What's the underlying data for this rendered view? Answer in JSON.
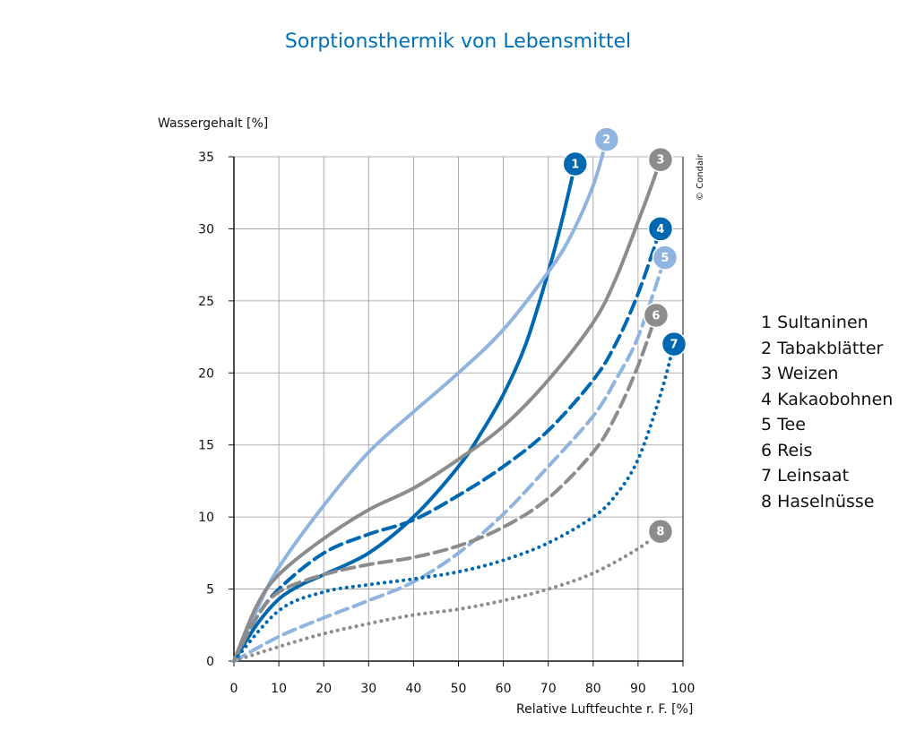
{
  "chart_data": {
    "type": "line",
    "title": "Sorptionsthermik von Lebensmittel",
    "ylabel": "Wassergehalt [%]",
    "xlabel": "Relative Luftfeuchte r. F. [%]",
    "xlim": [
      0,
      100
    ],
    "ylim": [
      0,
      35
    ],
    "xticks": [
      0,
      10,
      20,
      30,
      40,
      50,
      60,
      70,
      80,
      90,
      100
    ],
    "yticks": [
      0,
      5,
      10,
      15,
      20,
      25,
      30,
      35
    ],
    "grid": true,
    "legend_position": "right",
    "copyright": "© Condair",
    "series": [
      {
        "name": "Sultaninen",
        "label": "1",
        "color": "#0068b0",
        "style": "solid",
        "x": [
          0,
          5,
          10,
          15,
          20,
          30,
          40,
          50,
          55,
          60,
          65,
          70,
          73,
          76
        ],
        "y": [
          0,
          2.5,
          4.3,
          5.3,
          6.0,
          7.5,
          10.0,
          13.5,
          15.8,
          18.5,
          22.0,
          27.0,
          30.5,
          34.5
        ]
      },
      {
        "name": "Tabakblätter",
        "label": "2",
        "color": "#8fb4df",
        "style": "solid",
        "x": [
          0,
          5,
          10,
          20,
          30,
          40,
          50,
          60,
          70,
          75,
          80,
          83
        ],
        "y": [
          0,
          3.5,
          6.5,
          10.8,
          14.5,
          17.3,
          20.0,
          23.0,
          27.0,
          29.5,
          33.0,
          36.2
        ]
      },
      {
        "name": "Weizen",
        "label": "3",
        "color": "#8c8c8c",
        "style": "solid",
        "x": [
          0,
          5,
          10,
          20,
          30,
          40,
          50,
          60,
          70,
          80,
          85,
          90,
          93,
          95
        ],
        "y": [
          0,
          3.8,
          6.0,
          8.5,
          10.5,
          12.0,
          14.0,
          16.3,
          19.5,
          23.5,
          26.5,
          30.5,
          33.0,
          34.8
        ]
      },
      {
        "name": "Kakaobohnen",
        "label": "4",
        "color": "#0068b0",
        "style": "dashed",
        "x": [
          0,
          5,
          10,
          20,
          30,
          40,
          50,
          60,
          70,
          80,
          85,
          90,
          95
        ],
        "y": [
          0,
          3.0,
          5.0,
          7.5,
          8.8,
          9.8,
          11.5,
          13.5,
          16.0,
          19.5,
          22.0,
          25.5,
          30.0
        ]
      },
      {
        "name": "Tee",
        "label": "5",
        "color": "#8fb4df",
        "style": "dashed",
        "x": [
          0,
          10,
          20,
          30,
          40,
          50,
          60,
          70,
          80,
          85,
          90,
          96
        ],
        "y": [
          0,
          1.7,
          3.0,
          4.2,
          5.5,
          7.5,
          10.2,
          13.5,
          17.0,
          19.5,
          22.5,
          28.0
        ]
      },
      {
        "name": "Reis",
        "label": "6",
        "color": "#8c8c8c",
        "style": "dashed",
        "x": [
          0,
          5,
          10,
          20,
          30,
          40,
          50,
          60,
          70,
          80,
          85,
          90,
          94
        ],
        "y": [
          0,
          3.0,
          4.8,
          6.0,
          6.7,
          7.2,
          8.0,
          9.3,
          11.3,
          14.5,
          17.0,
          20.5,
          24.0
        ]
      },
      {
        "name": "Leinsaat",
        "label": "7",
        "color": "#0068b0",
        "style": "dotted",
        "x": [
          0,
          10,
          20,
          30,
          40,
          50,
          60,
          70,
          80,
          85,
          90,
          95,
          98
        ],
        "y": [
          0,
          3.5,
          4.8,
          5.3,
          5.7,
          6.2,
          7.0,
          8.2,
          10.0,
          11.5,
          14.0,
          18.5,
          22.0
        ]
      },
      {
        "name": "Haselnüsse",
        "label": "8",
        "color": "#8c8c8c",
        "style": "dotted",
        "x": [
          0,
          10,
          20,
          30,
          40,
          50,
          60,
          70,
          80,
          90,
          95
        ],
        "y": [
          0,
          1.0,
          1.9,
          2.6,
          3.2,
          3.6,
          4.2,
          5.0,
          6.1,
          7.8,
          9.0
        ]
      }
    ],
    "legend": [
      "1 Sultaninen",
      "2 Tabakblätter",
      "3 Weizen",
      "4 Kakaobohnen",
      "5 Tee",
      "6 Reis",
      "7 Leinsaat",
      "8 Haselnüsse"
    ]
  }
}
